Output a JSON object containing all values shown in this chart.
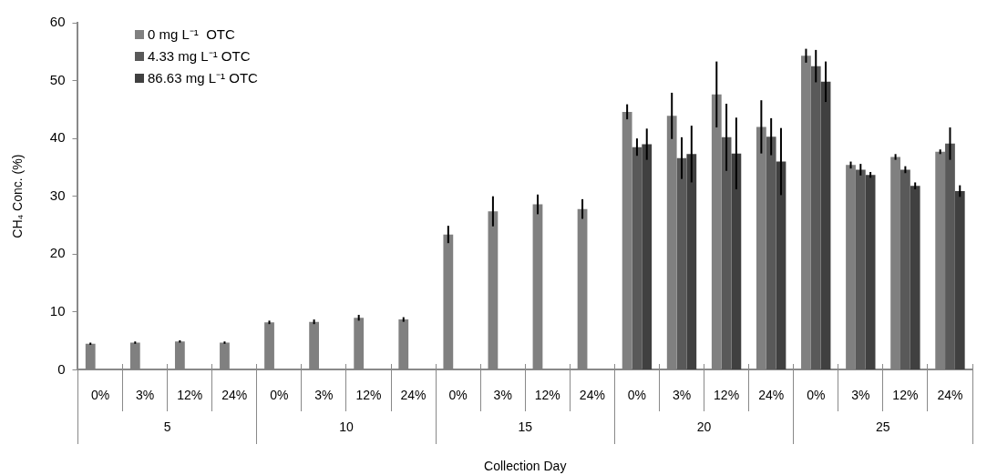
{
  "chart_data": {
    "type": "bar",
    "xlabel": "Collection Day",
    "ylabel": "CH₄ Conc. (%)",
    "categories": [
      "0%",
      "3%",
      "12%",
      "24%",
      "0%",
      "3%",
      "12%",
      "24%",
      "0%",
      "3%",
      "12%",
      "24%",
      "0%",
      "3%",
      "12%",
      "24%",
      "0%",
      "3%",
      "12%",
      "24%"
    ],
    "annotations": [
      "5",
      "10",
      "15",
      "20",
      "25"
    ],
    "series": [
      {
        "name": "0 mg L⁻¹  OTC",
        "color": "#808080",
        "values": [
          4.5,
          4.7,
          4.9,
          4.7,
          8.2,
          8.3,
          9.0,
          8.7,
          23.4,
          27.4,
          28.6,
          27.8,
          44.6,
          43.9,
          47.6,
          42.0,
          54.3,
          35.4,
          36.8,
          37.7
        ],
        "errors": [
          0.2,
          0.2,
          0.2,
          0.2,
          0.3,
          0.4,
          0.5,
          0.4,
          1.5,
          2.6,
          1.7,
          1.7,
          1.3,
          4.0,
          5.7,
          4.6,
          1.2,
          0.6,
          0.5,
          0.4
        ]
      },
      {
        "name": "4.33 mg L⁻¹ OTC",
        "color": "#595959",
        "values": [
          null,
          null,
          null,
          null,
          null,
          null,
          null,
          null,
          null,
          null,
          null,
          null,
          38.5,
          36.6,
          40.2,
          40.3,
          52.5,
          34.6,
          34.6,
          39.1
        ],
        "errors": [
          null,
          null,
          null,
          null,
          null,
          null,
          null,
          null,
          null,
          null,
          null,
          null,
          1.5,
          3.6,
          5.8,
          3.2,
          2.8,
          1.0,
          0.6,
          2.8
        ]
      },
      {
        "name": "86.63 mg L⁻¹ OTC",
        "color": "#404040",
        "values": [
          null,
          null,
          null,
          null,
          null,
          null,
          null,
          null,
          null,
          null,
          null,
          null,
          39.0,
          37.3,
          37.4,
          36.0,
          49.8,
          33.7,
          31.8,
          30.9
        ],
        "errors": [
          null,
          null,
          null,
          null,
          null,
          null,
          null,
          null,
          null,
          null,
          null,
          null,
          2.7,
          4.9,
          6.2,
          5.8,
          3.5,
          0.5,
          0.6,
          1.0
        ]
      }
    ],
    "ylim": [
      0,
      60
    ],
    "yticks": [
      0,
      10,
      20,
      30,
      40,
      50,
      60
    ],
    "legend": "top left"
  }
}
